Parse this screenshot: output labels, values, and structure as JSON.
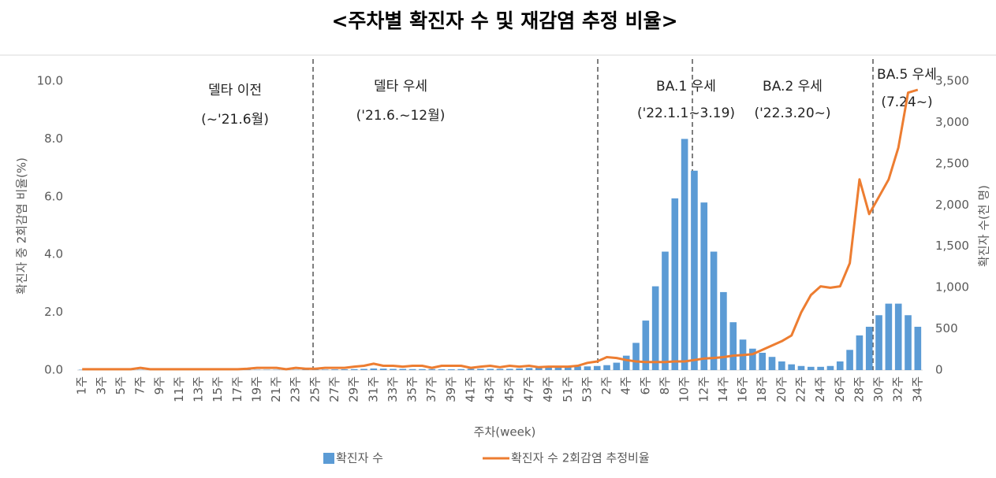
{
  "chart_data": {
    "type": "bar-line",
    "title": "<주차별 확진자 수 및 재감염 추정 비율>",
    "x_label": "주차(week)",
    "y_label": "확진자 중 2회감염 비율(%)",
    "y2_label": "확진자 수(천 명)",
    "categories": [
      "1주",
      null,
      "3주",
      null,
      "5주",
      null,
      "7주",
      null,
      "9주",
      null,
      "11주",
      null,
      "13주",
      null,
      "15주",
      null,
      "17주",
      null,
      "19주",
      null,
      "21주",
      null,
      "23주",
      null,
      "25주",
      null,
      "27주",
      null,
      "29주",
      null,
      "31주",
      null,
      "33주",
      null,
      "35주",
      null,
      "37주",
      null,
      "39주",
      null,
      "41주",
      null,
      "43주",
      null,
      "45주",
      null,
      "47주",
      null,
      "49주",
      null,
      "51주",
      null,
      "53주",
      null,
      "2주",
      null,
      "4주",
      null,
      "6주",
      null,
      "8주",
      null,
      "10주",
      null,
      "12주",
      null,
      "14주",
      null,
      "16주",
      null,
      "18주",
      null,
      "20주",
      null,
      "22주",
      null,
      "24주",
      null,
      "26주",
      null,
      "28주",
      null,
      "30주",
      null,
      "32주",
      null,
      "34주"
    ],
    "series": [
      {
        "name": "확진자 수",
        "kind": "bar",
        "axis": "y2",
        "color": "#5b9bd5",
        "values": [
          5,
          4,
          4,
          3,
          3,
          4,
          4,
          4,
          3,
          3,
          3,
          3,
          3,
          3,
          4,
          4,
          4,
          4,
          4,
          4,
          4,
          4,
          4,
          5,
          5,
          6,
          8,
          10,
          12,
          15,
          20,
          18,
          15,
          15,
          12,
          12,
          12,
          10,
          10,
          12,
          15,
          15,
          15,
          15,
          15,
          20,
          25,
          30,
          40,
          45,
          45,
          45,
          45,
          50,
          60,
          90,
          175,
          330,
          600,
          1015,
          1435,
          2080,
          2800,
          2415,
          2030,
          1435,
          945,
          580,
          370,
          260,
          210,
          160,
          105,
          70,
          50,
          40,
          40,
          50,
          105,
          245,
          420,
          525,
          665,
          805,
          805,
          665,
          525
        ]
      },
      {
        "name": "확진자 수 2회감염 추정비율",
        "kind": "line",
        "axis": "y",
        "color": "#ed7d31",
        "values": [
          0.03,
          0.03,
          0.03,
          0.03,
          0.03,
          0.03,
          0.08,
          0.03,
          0.03,
          0.03,
          0.03,
          0.03,
          0.03,
          0.03,
          0.03,
          0.03,
          0.03,
          0.05,
          0.08,
          0.08,
          0.08,
          0.03,
          0.08,
          0.05,
          0.05,
          0.08,
          0.08,
          0.08,
          0.12,
          0.15,
          0.22,
          0.15,
          0.15,
          0.12,
          0.15,
          0.15,
          0.08,
          0.15,
          0.15,
          0.15,
          0.08,
          0.12,
          0.15,
          0.1,
          0.15,
          0.12,
          0.15,
          0.1,
          0.12,
          0.12,
          0.12,
          0.15,
          0.25,
          0.3,
          0.45,
          0.42,
          0.35,
          0.3,
          0.28,
          0.28,
          0.28,
          0.3,
          0.3,
          0.35,
          0.4,
          0.42,
          0.45,
          0.5,
          0.52,
          0.55,
          0.7,
          0.85,
          1.0,
          1.2,
          2.0,
          2.6,
          2.9,
          2.85,
          2.9,
          3.7,
          6.6,
          5.4,
          6.0,
          6.6,
          7.7,
          9.6,
          9.7
        ]
      }
    ],
    "ylim": [
      0,
      10
    ],
    "yticks": [
      {
        "value": 0,
        "label": "0.0"
      },
      {
        "value": 2,
        "label": "2.0"
      },
      {
        "value": 4,
        "label": "4.0"
      },
      {
        "value": 6,
        "label": "6.0"
      },
      {
        "value": 8,
        "label": "8.0"
      },
      {
        "value": 10,
        "label": "10.0"
      }
    ],
    "y2lim": [
      0,
      3500
    ],
    "y2ticks": [
      0,
      500,
      {
        "value": 1000,
        "label": "1,000"
      },
      {
        "value": 1500,
        "label": "1,500"
      },
      {
        "value": 2000,
        "label": "2,000"
      },
      {
        "value": 2500,
        "label": "2,500"
      },
      {
        "value": 3000,
        "label": "3,000"
      },
      {
        "value": 3500,
        "label": "3,500"
      }
    ],
    "annotations": [
      [
        "델타 이전",
        "(~'21.6월)"
      ],
      [
        "델타 우세",
        "('21.6.~12월)"
      ],
      [
        "BA.1 우세",
        "('22.1.1~3.19)"
      ],
      [
        "BA.2 우세",
        "('22.3.20~)"
      ],
      [
        "BA.5 우세",
        "(7.24~)"
      ]
    ],
    "legend": "bottom"
  }
}
